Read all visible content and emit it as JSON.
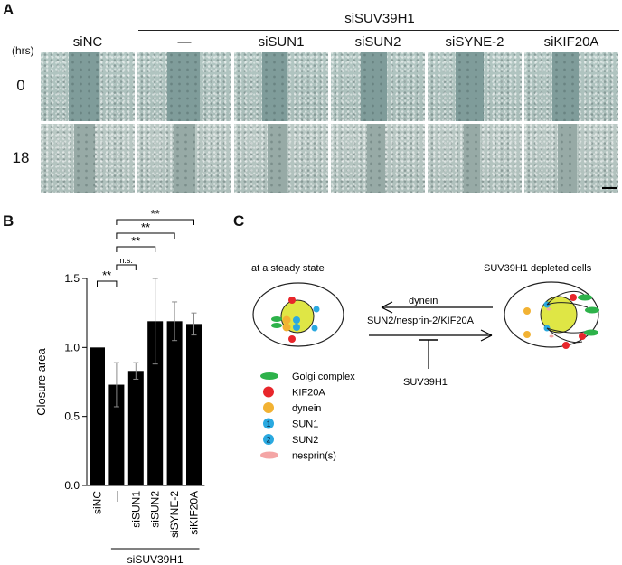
{
  "panel_a": {
    "letter": "A",
    "group_label": "siSUV39H1",
    "hrs_label": "(hrs)",
    "columns": [
      "siNC",
      "—",
      "siSUN1",
      "siSUN2",
      "siSYNE-2",
      "siKIF20A"
    ],
    "rows": [
      "0",
      "18"
    ]
  },
  "panel_b": {
    "letter": "B",
    "significance": [
      "**",
      "**",
      "**",
      "**",
      "n.s."
    ],
    "group_label": "siSUV39H1"
  },
  "panel_c": {
    "letter": "C",
    "left_title": "at a steady state",
    "right_title": "SUV39H1 depleted cells",
    "arrow_top_label": "dynein",
    "arrow_bottom_label": "SUN2/nesprin-2/KIF20A",
    "inhibitor_label": "SUV39H1",
    "legend": [
      {
        "label": "Golgi complex",
        "color": "#2db24a",
        "shape": "ellipse"
      },
      {
        "label": "KIF20A",
        "color": "#e8262b",
        "shape": "circle"
      },
      {
        "label": "dynein",
        "color": "#f2b233",
        "shape": "circle"
      },
      {
        "label": "SUN1",
        "color": "#2aa9e0",
        "shape": "numbered-circle",
        "number": "1"
      },
      {
        "label": "SUN2",
        "color": "#2aa9e0",
        "shape": "numbered-circle",
        "number": "2"
      },
      {
        "label": "nesprin(s)",
        "color": "#f4a5a5",
        "shape": "ellipse"
      }
    ]
  },
  "chart_data": {
    "type": "bar",
    "categories": [
      "siNC",
      "—",
      "siSUN1",
      "siSUN2",
      "siSYNE-2",
      "siKIF20A"
    ],
    "values": [
      1.0,
      0.73,
      0.83,
      1.19,
      1.19,
      1.17
    ],
    "errors": [
      0.0,
      0.16,
      0.06,
      0.31,
      0.14,
      0.08
    ],
    "ylabel": "Closure area",
    "ylim": [
      0.0,
      1.5
    ],
    "yticks": [
      "0.0",
      "0.5",
      "1.0",
      "1.5"
    ],
    "bar_color": "#000000"
  }
}
